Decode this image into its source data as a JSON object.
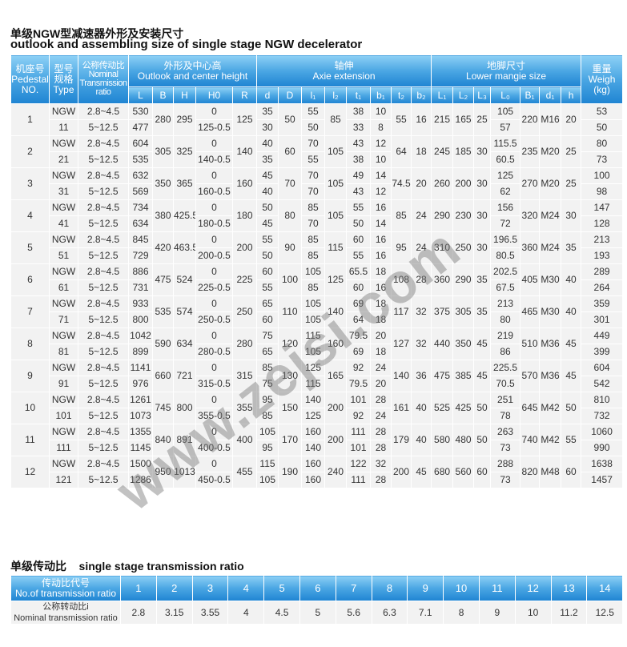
{
  "title_cn": "单级NGW型减速器外形及安装尺寸",
  "title_en": "outlook and assembling size of single stage NGW decelerator",
  "watermark": "www.zejsi.com",
  "colors": {
    "header_top": "#8dd0f5",
    "header_bottom": "#1f84d2",
    "cell_bg": "#f2f2f2"
  },
  "main_headers": {
    "pedestal": [
      "机座号",
      "Pedestal",
      "NO."
    ],
    "type": [
      "型号",
      "规格",
      "Type"
    ],
    "ratio": [
      "公称传动比",
      "Nominal",
      "Transmission",
      "ratio"
    ],
    "outlook": [
      "外形及中心高",
      "Outlook and center height"
    ],
    "axie": [
      "轴伸",
      "Axie extension"
    ],
    "lower": [
      "地脚尺寸",
      "Lower mangie size"
    ],
    "weight": [
      "重量",
      "Weigh",
      "(kg)"
    ],
    "cols": [
      "L",
      "B",
      "H",
      "H0",
      "R",
      "d",
      "D",
      "l₁",
      "l₂",
      "t₁",
      "b₁",
      "t₂",
      "b₂",
      "L₁",
      "L₂",
      "L₃",
      "L₀",
      "B₁",
      "d₁",
      "h"
    ]
  },
  "rows": [
    {
      "no": "1",
      "type": [
        "NGW",
        "11"
      ],
      "ratio": [
        "2.8~4.5",
        "5~12.5"
      ],
      "L": [
        "530",
        "477"
      ],
      "B": "280",
      "H": "295",
      "H0": [
        "0",
        "125-0.5"
      ],
      "R": "125",
      "d": [
        "35",
        "30"
      ],
      "D": "50",
      "l1": [
        "55",
        "50"
      ],
      "l2": "85",
      "t1": [
        "38",
        "33"
      ],
      "b1": [
        "10",
        "8"
      ],
      "t2": "55",
      "b2": "16",
      "L1": "215",
      "L2": "165",
      "L3": "25",
      "L0": [
        "105",
        "57"
      ],
      "B1": "220",
      "d1": "M16",
      "h": "20",
      "weight": [
        "53",
        "50"
      ]
    },
    {
      "no": "2",
      "type": [
        "NGW",
        "21"
      ],
      "ratio": [
        "2.8~4.5",
        "5~12.5"
      ],
      "L": [
        "604",
        "535"
      ],
      "B": "305",
      "H": "325",
      "H0": [
        "0",
        "140-0.5"
      ],
      "R": "140",
      "d": [
        "40",
        "35"
      ],
      "D": "60",
      "l1": [
        "70",
        "55"
      ],
      "l2": "105",
      "t1": [
        "43",
        "38"
      ],
      "b1": [
        "12",
        "10"
      ],
      "t2": "64",
      "b2": "18",
      "L1": "245",
      "L2": "185",
      "L3": "30",
      "L0": [
        "115.5",
        "60.5"
      ],
      "B1": "235",
      "d1": "M20",
      "h": "25",
      "weight": [
        "80",
        "73"
      ]
    },
    {
      "no": "3",
      "type": [
        "NGW",
        "31"
      ],
      "ratio": [
        "2.8~4.5",
        "5~12.5"
      ],
      "L": [
        "632",
        "569"
      ],
      "B": "350",
      "H": "365",
      "H0": [
        "0",
        "160-0.5"
      ],
      "R": "160",
      "d": [
        "45",
        "40"
      ],
      "D": "70",
      "l1": [
        "70",
        "70"
      ],
      "l2": "105",
      "t1": [
        "49",
        "43"
      ],
      "b1": [
        "14",
        "12"
      ],
      "t2": "74.5",
      "b2": "20",
      "L1": "260",
      "L2": "200",
      "L3": "30",
      "L0": [
        "125",
        "62"
      ],
      "B1": "270",
      "d1": "M20",
      "h": "25",
      "weight": [
        "100",
        "98"
      ]
    },
    {
      "no": "4",
      "type": [
        "NGW",
        "41"
      ],
      "ratio": [
        "2.8~4.5",
        "5~12.5"
      ],
      "L": [
        "734",
        "634"
      ],
      "B": "380",
      "H": "425.5",
      "H0": [
        "0",
        "180-0.5"
      ],
      "R": "180",
      "d": [
        "50",
        "45"
      ],
      "D": "80",
      "l1": [
        "85",
        "70"
      ],
      "l2": "105",
      "t1": [
        "55",
        "50"
      ],
      "b1": [
        "16",
        "14"
      ],
      "t2": "85",
      "b2": "24",
      "L1": "290",
      "L2": "230",
      "L3": "30",
      "L0": [
        "156",
        "72"
      ],
      "B1": "320",
      "d1": "M24",
      "h": "30",
      "weight": [
        "147",
        "128"
      ]
    },
    {
      "no": "5",
      "type": [
        "NGW",
        "51"
      ],
      "ratio": [
        "2.8~4.5",
        "5~12.5"
      ],
      "L": [
        "845",
        "729"
      ],
      "B": "420",
      "H": "463.5",
      "H0": [
        "0",
        "200-0.5"
      ],
      "R": "200",
      "d": [
        "55",
        "50"
      ],
      "D": "90",
      "l1": [
        "85",
        "85"
      ],
      "l2": "115",
      "t1": [
        "60",
        "55"
      ],
      "b1": [
        "16",
        "16"
      ],
      "t2": "95",
      "b2": "24",
      "L1": "310",
      "L2": "250",
      "L3": "30",
      "L0": [
        "196.5",
        "80.5"
      ],
      "B1": "360",
      "d1": "M24",
      "h": "35",
      "weight": [
        "213",
        "193"
      ]
    },
    {
      "no": "6",
      "type": [
        "NGW",
        "61"
      ],
      "ratio": [
        "2.8~4.5",
        "5~12.5"
      ],
      "L": [
        "886",
        "731"
      ],
      "B": "475",
      "H": "524",
      "H0": [
        "0",
        "225-0.5"
      ],
      "R": "225",
      "d": [
        "60",
        "55"
      ],
      "D": "100",
      "l1": [
        "105",
        "85"
      ],
      "l2": "125",
      "t1": [
        "65.5",
        "60"
      ],
      "b1": [
        "18",
        "16"
      ],
      "t2": "108",
      "b2": "28",
      "L1": "360",
      "L2": "290",
      "L3": "35",
      "L0": [
        "202.5",
        "67.5"
      ],
      "B1": "405",
      "d1": "M30",
      "h": "40",
      "weight": [
        "289",
        "264"
      ]
    },
    {
      "no": "7",
      "type": [
        "NGW",
        "71"
      ],
      "ratio": [
        "2.8~4.5",
        "5~12.5"
      ],
      "L": [
        "933",
        "800"
      ],
      "B": "535",
      "H": "574",
      "H0": [
        "0",
        "250-0.5"
      ],
      "R": "250",
      "d": [
        "65",
        "60"
      ],
      "D": "110",
      "l1": [
        "105",
        "105"
      ],
      "l2": "140",
      "t1": [
        "69",
        "64"
      ],
      "b1": [
        "18",
        "18"
      ],
      "t2": "117",
      "b2": "32",
      "L1": "375",
      "L2": "305",
      "L3": "35",
      "L0": [
        "213",
        "80"
      ],
      "B1": "465",
      "d1": "M30",
      "h": "40",
      "weight": [
        "359",
        "301"
      ]
    },
    {
      "no": "8",
      "type": [
        "NGW",
        "81"
      ],
      "ratio": [
        "2.8~4.5",
        "5~12.5"
      ],
      "L": [
        "1042",
        "899"
      ],
      "B": "590",
      "H": "634",
      "H0": [
        "0",
        "280-0.5"
      ],
      "R": "280",
      "d": [
        "75",
        "65"
      ],
      "D": "120",
      "l1": [
        "115",
        "105"
      ],
      "l2": "160",
      "t1": [
        "79.5",
        "69"
      ],
      "b1": [
        "20",
        "18"
      ],
      "t2": "127",
      "b2": "32",
      "L1": "440",
      "L2": "350",
      "L3": "45",
      "L0": [
        "219",
        "86"
      ],
      "B1": "510",
      "d1": "M36",
      "h": "45",
      "weight": [
        "449",
        "399"
      ]
    },
    {
      "no": "9",
      "type": [
        "NGW",
        "91"
      ],
      "ratio": [
        "2.8~4.5",
        "5~12.5"
      ],
      "L": [
        "1141",
        "976"
      ],
      "B": "660",
      "H": "721",
      "H0": [
        "0",
        "315-0.5"
      ],
      "R": "315",
      "d": [
        "85",
        "75"
      ],
      "D": "130",
      "l1": [
        "125",
        "115"
      ],
      "l2": "165",
      "t1": [
        "92",
        "79.5"
      ],
      "b1": [
        "24",
        "20"
      ],
      "t2": "140",
      "b2": "36",
      "L1": "475",
      "L2": "385",
      "L3": "45",
      "L0": [
        "225.5",
        "70.5"
      ],
      "B1": "570",
      "d1": "M36",
      "h": "45",
      "weight": [
        "604",
        "542"
      ]
    },
    {
      "no": "10",
      "type": [
        "NGW",
        "101"
      ],
      "ratio": [
        "2.8~4.5",
        "5~12.5"
      ],
      "L": [
        "1261",
        "1073"
      ],
      "B": "745",
      "H": "800",
      "H0": [
        "0",
        "355-0.5"
      ],
      "R": "355",
      "d": [
        "95",
        "85"
      ],
      "D": "150",
      "l1": [
        "140",
        "125"
      ],
      "l2": "200",
      "t1": [
        "101",
        "92"
      ],
      "b1": [
        "28",
        "24"
      ],
      "t2": "161",
      "b2": "40",
      "L1": "525",
      "L2": "425",
      "L3": "50",
      "L0": [
        "251",
        "78"
      ],
      "B1": "645",
      "d1": "M42",
      "h": "50",
      "weight": [
        "810",
        "732"
      ]
    },
    {
      "no": "11",
      "type": [
        "NGW",
        "111"
      ],
      "ratio": [
        "2.8~4.5",
        "5~12.5"
      ],
      "L": [
        "1355",
        "1145"
      ],
      "B": "840",
      "H": "891",
      "H0": [
        "0",
        "400-0.5"
      ],
      "R": "400",
      "d": [
        "105",
        "95"
      ],
      "D": "170",
      "l1": [
        "160",
        "140"
      ],
      "l2": "200",
      "t1": [
        "111",
        "101"
      ],
      "b1": [
        "28",
        "28"
      ],
      "t2": "179",
      "b2": "40",
      "L1": "580",
      "L2": "480",
      "L3": "50",
      "L0": [
        "263",
        "73"
      ],
      "B1": "740",
      "d1": "M42",
      "h": "55",
      "weight": [
        "1060",
        "990"
      ]
    },
    {
      "no": "12",
      "type": [
        "NGW",
        "121"
      ],
      "ratio": [
        "2.8~4.5",
        "5~12.5"
      ],
      "L": [
        "1500",
        "1286"
      ],
      "B": "950",
      "H": "1013",
      "H0": [
        "0",
        "450-0.5"
      ],
      "R": "455",
      "d": [
        "115",
        "105"
      ],
      "D": "190",
      "l1": [
        "160",
        "160"
      ],
      "l2": "240",
      "t1": [
        "122",
        "111"
      ],
      "b1": [
        "32",
        "28"
      ],
      "t2": "200",
      "b2": "45",
      "L1": "680",
      "L2": "560",
      "L3": "60",
      "L0": [
        "288",
        "73"
      ],
      "B1": "820",
      "d1": "M48",
      "h": "60",
      "weight": [
        "1638",
        "1457"
      ]
    }
  ],
  "ratio_section": {
    "title": "单级传动比    single stage transmission ratio",
    "header_label": [
      "传动比代号",
      "No.of transmission ratio"
    ],
    "row_label": [
      "公称转动比i",
      "Nominal transmission ratio"
    ],
    "numbers": [
      "1",
      "2",
      "3",
      "4",
      "5",
      "6",
      "7",
      "8",
      "9",
      "10",
      "11",
      "12",
      "13",
      "14"
    ],
    "values": [
      "2.8",
      "3.15",
      "3.55",
      "4",
      "4.5",
      "5",
      "5.6",
      "6.3",
      "7.1",
      "8",
      "9",
      "10",
      "11.2",
      "12.5"
    ]
  }
}
